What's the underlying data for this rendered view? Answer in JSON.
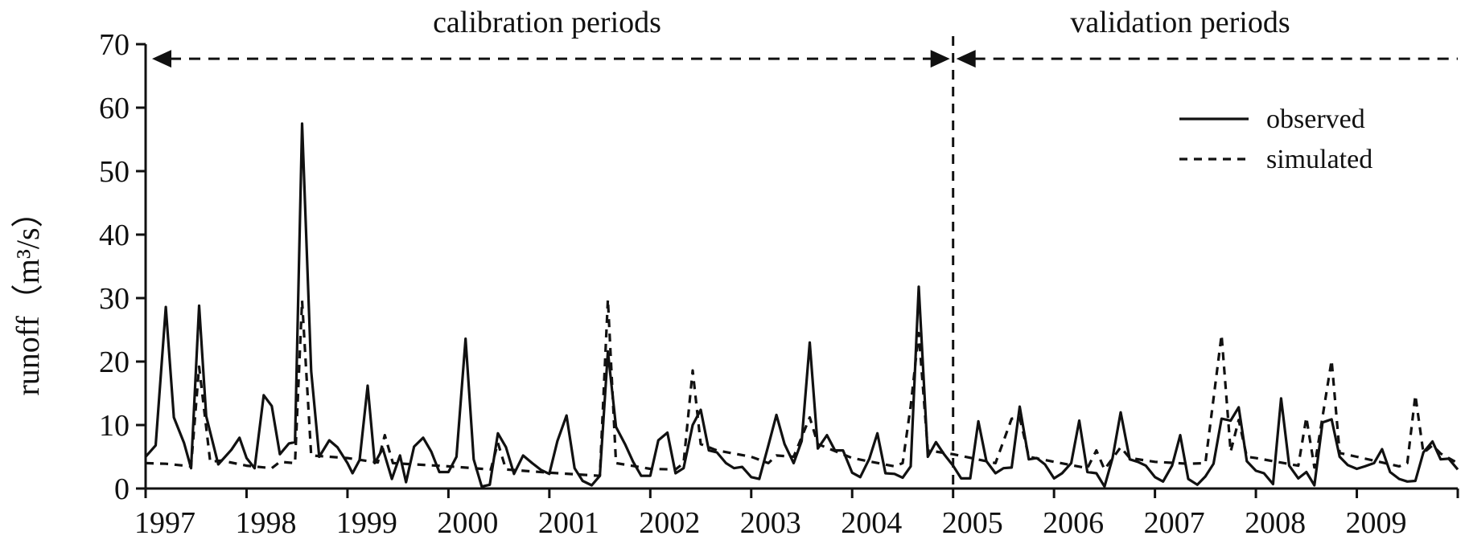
{
  "chart_data": {
    "type": "line",
    "ylabel": "runoff（m³/s）",
    "xlabel": "",
    "ylim": [
      0,
      70
    ],
    "xlim": [
      1997,
      2010
    ],
    "y_ticks": [
      "0",
      "10",
      "20",
      "30",
      "40",
      "50",
      "60",
      "70"
    ],
    "y_tick_values": [
      0,
      10,
      20,
      30,
      40,
      50,
      60,
      70
    ],
    "x_ticks": [
      "1997",
      "1998",
      "1999",
      "2000",
      "2001",
      "2002",
      "2003",
      "2004",
      "2005",
      "2006",
      "2007",
      "2008",
      "2009"
    ],
    "x_tick_values": [
      1997,
      1998,
      1999,
      2000,
      2001,
      2002,
      2003,
      2004,
      2005,
      2006,
      2007,
      2008,
      2009
    ],
    "grid": false,
    "legend_position": "top-right",
    "periods": [
      {
        "label": "calibration periods",
        "start": 1997,
        "end": 2005
      },
      {
        "label": "validation periods",
        "start": 2005,
        "end": 2010
      }
    ],
    "period_arrow_y": 67.7,
    "series": [
      {
        "name": "observed",
        "style": "solid",
        "color": "#111111",
        "points": [
          [
            1997.0,
            5.0
          ],
          [
            1997.1,
            6.8
          ],
          [
            1997.2,
            28.6
          ],
          [
            1997.28,
            11.2
          ],
          [
            1997.38,
            7.2
          ],
          [
            1997.45,
            3.2
          ],
          [
            1997.53,
            28.8
          ],
          [
            1997.6,
            11.4
          ],
          [
            1997.72,
            3.8
          ],
          [
            1997.85,
            6.1
          ],
          [
            1997.93,
            8.0
          ],
          [
            1998.0,
            4.8
          ],
          [
            1998.08,
            3.2
          ],
          [
            1998.17,
            14.7
          ],
          [
            1998.25,
            13.0
          ],
          [
            1998.33,
            5.4
          ],
          [
            1998.42,
            7.1
          ],
          [
            1998.48,
            7.3
          ],
          [
            1998.55,
            57.5
          ],
          [
            1998.64,
            18.5
          ],
          [
            1998.72,
            5.0
          ],
          [
            1998.82,
            7.6
          ],
          [
            1998.9,
            6.5
          ],
          [
            1999.0,
            4.0
          ],
          [
            1999.05,
            2.4
          ],
          [
            1999.12,
            4.5
          ],
          [
            1999.2,
            16.2
          ],
          [
            1999.27,
            4.0
          ],
          [
            1999.35,
            6.3
          ],
          [
            1999.44,
            1.5
          ],
          [
            1999.52,
            5.2
          ],
          [
            1999.58,
            1.0
          ],
          [
            1999.66,
            6.6
          ],
          [
            1999.75,
            8.0
          ],
          [
            1999.83,
            5.8
          ],
          [
            1999.91,
            2.6
          ],
          [
            2000.0,
            2.6
          ],
          [
            2000.08,
            5.0
          ],
          [
            2000.17,
            23.6
          ],
          [
            2000.25,
            4.6
          ],
          [
            2000.33,
            0.3
          ],
          [
            2000.41,
            0.6
          ],
          [
            2000.49,
            8.7
          ],
          [
            2000.57,
            6.5
          ],
          [
            2000.65,
            2.3
          ],
          [
            2000.74,
            5.2
          ],
          [
            2000.83,
            4.0
          ],
          [
            2000.92,
            2.9
          ],
          [
            2001.0,
            2.3
          ],
          [
            2001.08,
            7.5
          ],
          [
            2001.17,
            11.5
          ],
          [
            2001.25,
            3.2
          ],
          [
            2001.33,
            1.2
          ],
          [
            2001.42,
            0.5
          ],
          [
            2001.5,
            2.0
          ],
          [
            2001.58,
            21.6
          ],
          [
            2001.66,
            9.7
          ],
          [
            2001.75,
            7.0
          ],
          [
            2001.83,
            4.2
          ],
          [
            2001.91,
            2.0
          ],
          [
            2002.0,
            2.0
          ],
          [
            2002.08,
            7.6
          ],
          [
            2002.17,
            8.8
          ],
          [
            2002.25,
            2.4
          ],
          [
            2002.33,
            3.2
          ],
          [
            2002.42,
            10.0
          ],
          [
            2002.5,
            12.4
          ],
          [
            2002.58,
            6.0
          ],
          [
            2002.66,
            5.7
          ],
          [
            2002.75,
            4.0
          ],
          [
            2002.83,
            3.2
          ],
          [
            2002.91,
            3.4
          ],
          [
            2003.0,
            1.8
          ],
          [
            2003.08,
            1.5
          ],
          [
            2003.17,
            6.8
          ],
          [
            2003.25,
            11.6
          ],
          [
            2003.33,
            7.0
          ],
          [
            2003.42,
            4.0
          ],
          [
            2003.5,
            7.5
          ],
          [
            2003.58,
            23.0
          ],
          [
            2003.66,
            6.3
          ],
          [
            2003.75,
            8.4
          ],
          [
            2003.83,
            6.0
          ],
          [
            2003.91,
            6.0
          ],
          [
            2004.0,
            2.5
          ],
          [
            2004.08,
            1.8
          ],
          [
            2004.17,
            4.7
          ],
          [
            2004.25,
            8.7
          ],
          [
            2004.33,
            2.4
          ],
          [
            2004.42,
            2.3
          ],
          [
            2004.5,
            1.7
          ],
          [
            2004.58,
            3.5
          ],
          [
            2004.66,
            31.8
          ],
          [
            2004.75,
            5.0
          ],
          [
            2004.83,
            7.3
          ],
          [
            2004.91,
            5.4
          ],
          [
            2005.0,
            3.6
          ],
          [
            2005.08,
            1.6
          ],
          [
            2005.17,
            1.6
          ],
          [
            2005.25,
            10.6
          ],
          [
            2005.33,
            4.3
          ],
          [
            2005.42,
            2.4
          ],
          [
            2005.5,
            3.2
          ],
          [
            2005.58,
            3.3
          ],
          [
            2005.66,
            12.9
          ],
          [
            2005.75,
            4.6
          ],
          [
            2005.83,
            4.8
          ],
          [
            2005.91,
            3.8
          ],
          [
            2006.0,
            1.6
          ],
          [
            2006.08,
            2.4
          ],
          [
            2006.17,
            4.0
          ],
          [
            2006.25,
            10.7
          ],
          [
            2006.33,
            2.6
          ],
          [
            2006.42,
            2.4
          ],
          [
            2006.5,
            0.3
          ],
          [
            2006.58,
            4.8
          ],
          [
            2006.66,
            12.0
          ],
          [
            2006.75,
            4.6
          ],
          [
            2006.83,
            4.2
          ],
          [
            2006.91,
            3.6
          ],
          [
            2007.0,
            1.8
          ],
          [
            2007.08,
            1.1
          ],
          [
            2007.17,
            3.6
          ],
          [
            2007.25,
            8.4
          ],
          [
            2007.33,
            1.5
          ],
          [
            2007.42,
            0.6
          ],
          [
            2007.5,
            1.9
          ],
          [
            2007.58,
            3.9
          ],
          [
            2007.66,
            11.0
          ],
          [
            2007.75,
            10.7
          ],
          [
            2007.83,
            12.8
          ],
          [
            2007.91,
            4.3
          ],
          [
            2008.0,
            2.8
          ],
          [
            2008.08,
            2.4
          ],
          [
            2008.17,
            0.7
          ],
          [
            2008.25,
            14.2
          ],
          [
            2008.33,
            3.6
          ],
          [
            2008.42,
            1.6
          ],
          [
            2008.5,
            2.6
          ],
          [
            2008.58,
            0.5
          ],
          [
            2008.66,
            10.4
          ],
          [
            2008.75,
            10.9
          ],
          [
            2008.83,
            5.0
          ],
          [
            2008.91,
            3.7
          ],
          [
            2009.0,
            3.1
          ],
          [
            2009.08,
            3.5
          ],
          [
            2009.17,
            4.0
          ],
          [
            2009.25,
            6.2
          ],
          [
            2009.33,
            2.6
          ],
          [
            2009.42,
            1.5
          ],
          [
            2009.5,
            1.1
          ],
          [
            2009.58,
            1.2
          ],
          [
            2009.66,
            5.7
          ],
          [
            2009.75,
            7.4
          ],
          [
            2009.83,
            4.6
          ],
          [
            2009.91,
            4.7
          ],
          [
            2010.0,
            3.0
          ]
        ]
      },
      {
        "name": "simulated",
        "style": "dashed",
        "color": "#111111",
        "points": [
          [
            1997.0,
            4.0
          ],
          [
            1997.2,
            3.9
          ],
          [
            1997.45,
            3.5
          ],
          [
            1997.53,
            19.2
          ],
          [
            1997.64,
            4.2
          ],
          [
            1997.75,
            4.4
          ],
          [
            1998.0,
            3.6
          ],
          [
            1998.25,
            3.2
          ],
          [
            1998.33,
            4.2
          ],
          [
            1998.48,
            4.0
          ],
          [
            1998.55,
            29.6
          ],
          [
            1998.64,
            5.2
          ],
          [
            1999.0,
            4.8
          ],
          [
            1999.3,
            4.1
          ],
          [
            1999.37,
            8.4
          ],
          [
            1999.45,
            4.0
          ],
          [
            2000.0,
            3.5
          ],
          [
            2000.42,
            3.0
          ],
          [
            2000.49,
            7.2
          ],
          [
            2000.57,
            3.0
          ],
          [
            2001.0,
            2.5
          ],
          [
            2001.5,
            2.0
          ],
          [
            2001.58,
            29.8
          ],
          [
            2001.66,
            4.0
          ],
          [
            2002.0,
            3.1
          ],
          [
            2002.25,
            3.0
          ],
          [
            2002.33,
            4.0
          ],
          [
            2002.42,
            18.6
          ],
          [
            2002.5,
            7.0
          ],
          [
            2002.66,
            6.0
          ],
          [
            2003.0,
            5.0
          ],
          [
            2003.17,
            4.0
          ],
          [
            2003.25,
            5.2
          ],
          [
            2003.42,
            5.0
          ],
          [
            2003.58,
            11.2
          ],
          [
            2003.66,
            7.0
          ],
          [
            2004.0,
            4.8
          ],
          [
            2004.42,
            3.5
          ],
          [
            2004.5,
            4.0
          ],
          [
            2004.58,
            13.0
          ],
          [
            2004.66,
            24.5
          ],
          [
            2004.75,
            6.0
          ],
          [
            2005.0,
            5.4
          ],
          [
            2005.42,
            4.0
          ],
          [
            2005.58,
            11.0
          ],
          [
            2005.66,
            11.2
          ],
          [
            2005.75,
            5.0
          ],
          [
            2006.0,
            4.2
          ],
          [
            2006.33,
            3.2
          ],
          [
            2006.42,
            6.0
          ],
          [
            2006.5,
            3.0
          ],
          [
            2006.66,
            6.5
          ],
          [
            2006.75,
            4.8
          ],
          [
            2007.0,
            4.2
          ],
          [
            2007.33,
            3.9
          ],
          [
            2007.5,
            4.0
          ],
          [
            2007.66,
            24.2
          ],
          [
            2007.75,
            5.8
          ],
          [
            2007.83,
            10.8
          ],
          [
            2007.91,
            5.0
          ],
          [
            2008.0,
            4.8
          ],
          [
            2008.42,
            3.6
          ],
          [
            2008.5,
            11.2
          ],
          [
            2008.58,
            3.3
          ],
          [
            2008.75,
            20.2
          ],
          [
            2008.83,
            5.6
          ],
          [
            2009.0,
            5.0
          ],
          [
            2009.42,
            3.5
          ],
          [
            2009.5,
            4.0
          ],
          [
            2009.58,
            14.7
          ],
          [
            2009.66,
            5.6
          ],
          [
            2009.75,
            6.8
          ],
          [
            2009.83,
            5.5
          ],
          [
            2010.0,
            4.0
          ]
        ]
      }
    ]
  }
}
